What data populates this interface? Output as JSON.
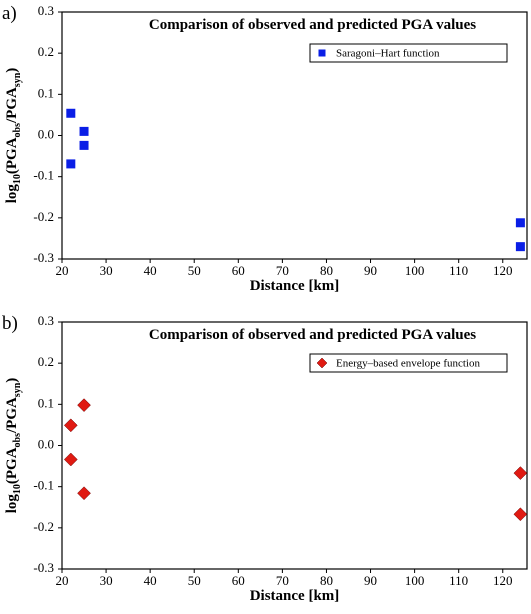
{
  "chart_data": [
    {
      "type": "scatter",
      "panel_label": "a)",
      "title": "Comparison of observed and predicted PGA values",
      "xlabel": "Distance [km]",
      "ylabel": [
        "log",
        "10",
        "(PGA",
        "obs",
        "/PGA",
        "syn",
        ")"
      ],
      "xlim": [
        20,
        125.5
      ],
      "ylim": [
        -0.3,
        0.3
      ],
      "xticks": [
        20,
        30,
        40,
        50,
        60,
        70,
        80,
        90,
        100,
        110,
        120
      ],
      "yticks": [
        -0.3,
        -0.2,
        -0.1,
        {
          "value": 0,
          "label": "0.0"
        },
        0.1,
        0.2,
        0.3
      ],
      "legend": "top right",
      "series": [
        {
          "name": "Saragoni–Hart function",
          "color": "#0a1ee6",
          "marker": "square",
          "x": [
            22,
            22,
            25,
            25,
            124,
            124
          ],
          "values": [
            0.054,
            -0.069,
            0.01,
            -0.024,
            -0.212,
            -0.27
          ]
        }
      ]
    },
    {
      "type": "scatter",
      "panel_label": "b)",
      "title": "Comparison of observed and predicted PGA values",
      "xlabel": "Distance [km]",
      "ylabel": [
        "log",
        "10",
        "(PGA",
        "obs",
        "/PGA",
        "syn",
        ")"
      ],
      "xlim": [
        20,
        125.5
      ],
      "ylim": [
        -0.3,
        0.3
      ],
      "xticks": [
        20,
        30,
        40,
        50,
        60,
        70,
        80,
        90,
        100,
        110,
        120
      ],
      "yticks": [
        -0.3,
        -0.2,
        -0.1,
        {
          "value": 0,
          "label": "0.0"
        },
        0.1,
        0.2,
        0.3
      ],
      "legend": "top right",
      "series": [
        {
          "name": "Energy–based envelope function",
          "color": "#e01a12",
          "marker": "diamond",
          "x": [
            22,
            22,
            25,
            25,
            124,
            124
          ],
          "values": [
            0.049,
            -0.034,
            0.098,
            -0.116,
            -0.067,
            -0.167
          ]
        }
      ]
    }
  ]
}
